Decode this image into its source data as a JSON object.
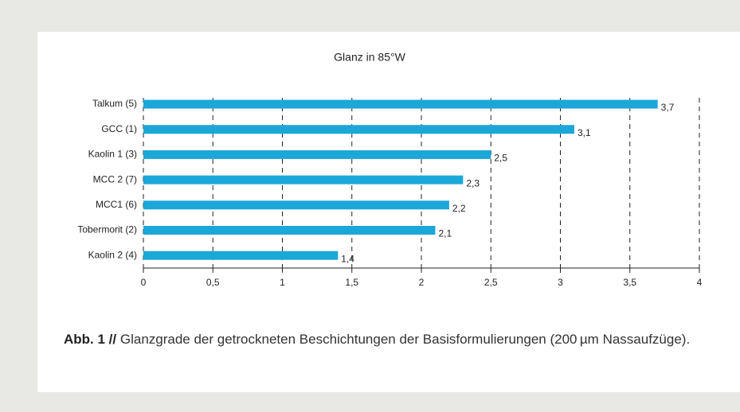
{
  "chart_data": {
    "type": "bar",
    "orientation": "horizontal",
    "title": "Glanz in 85°W",
    "categories": [
      "Talkum (5)",
      "GCC (1)",
      "Kaolin 1 (3)",
      "MCC 2 (7)",
      "MCC1 (6)",
      "Tobermorit (2)",
      "Kaolin 2 (4)"
    ],
    "values": [
      3.7,
      3.1,
      2.5,
      2.3,
      2.2,
      2.1,
      1.4
    ],
    "value_labels": [
      "3,7",
      "3,1",
      "2,5",
      "2,3",
      "2,2",
      "2,1",
      "1,4"
    ],
    "color": "#1ba7d8",
    "xlim": [
      0,
      4
    ],
    "xticks": [
      0,
      {
        "value": 0.5,
        "label": "0,5"
      },
      1,
      {
        "value": 1.5,
        "label": "1,5"
      },
      2,
      {
        "value": 2.5,
        "label": "2,5"
      },
      3,
      {
        "value": 3.5,
        "label": "3,5"
      },
      4
    ],
    "grid": true
  },
  "caption": {
    "label": "Abb. 1 //",
    "text": "Glanzgrade der getrockneten Beschichtungen der Basisformulierungen (200 µm Nassaufzüge)."
  }
}
